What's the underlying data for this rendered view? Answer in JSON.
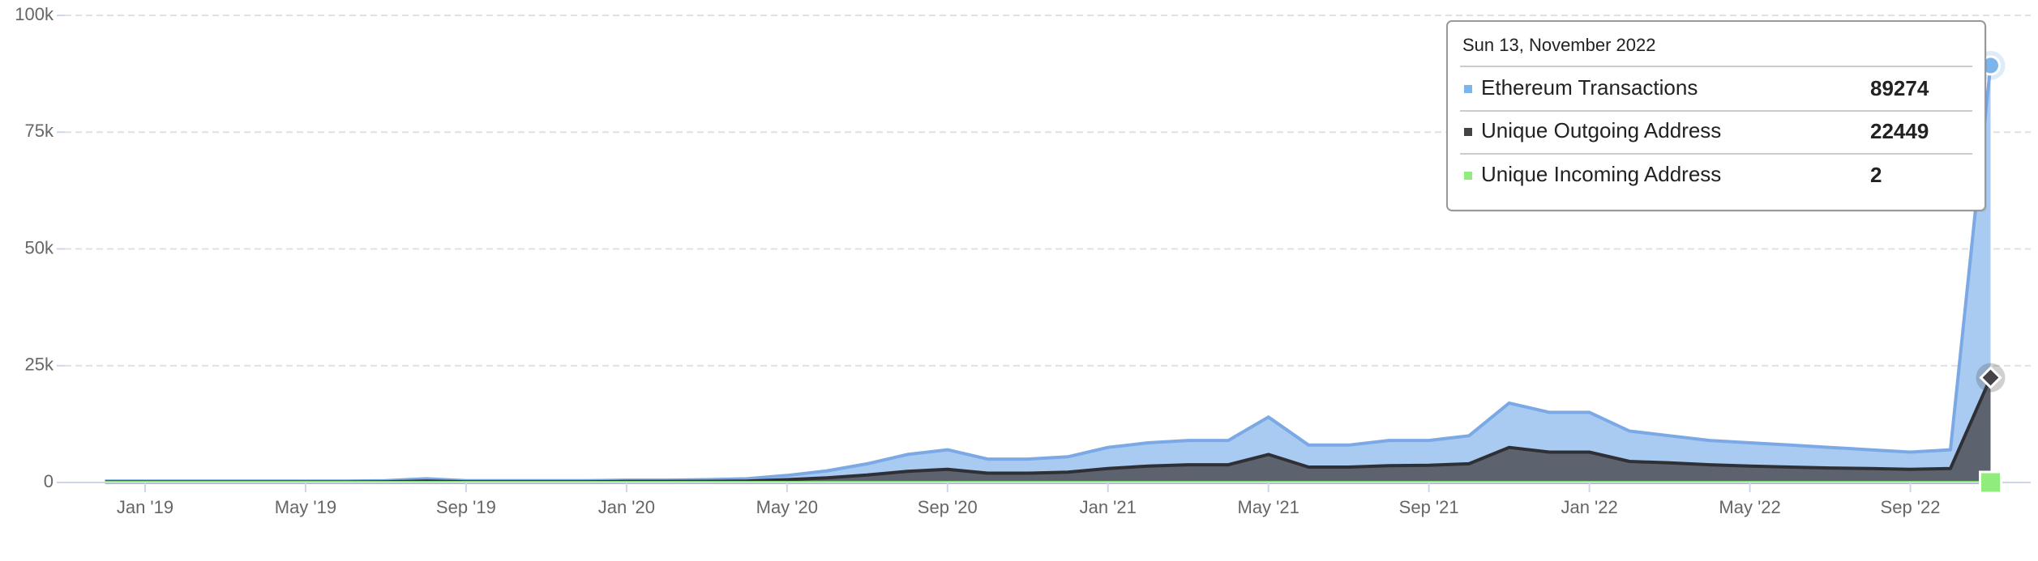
{
  "chart_data": {
    "type": "area",
    "x": [
      "2018-12",
      "2019-01",
      "2019-02",
      "2019-03",
      "2019-04",
      "2019-05",
      "2019-06",
      "2019-07",
      "2019-08",
      "2019-09",
      "2019-10",
      "2019-11",
      "2019-12",
      "2020-01",
      "2020-02",
      "2020-03",
      "2020-04",
      "2020-05",
      "2020-06",
      "2020-07",
      "2020-08",
      "2020-09",
      "2020-10",
      "2020-11",
      "2020-12",
      "2021-01",
      "2021-02",
      "2021-03",
      "2021-04",
      "2021-05",
      "2021-06",
      "2021-07",
      "2021-08",
      "2021-09",
      "2021-10",
      "2021-11",
      "2021-12",
      "2022-01",
      "2022-02",
      "2022-03",
      "2022-04",
      "2022-05",
      "2022-06",
      "2022-07",
      "2022-08",
      "2022-09",
      "2022-10",
      "2022-11"
    ],
    "xlim": [
      "2018-11",
      "2022-12"
    ],
    "xticks": [
      {
        "value": "2019-01",
        "label": "Jan '19"
      },
      {
        "value": "2019-05",
        "label": "May '19"
      },
      {
        "value": "2019-09",
        "label": "Sep '19"
      },
      {
        "value": "2020-01",
        "label": "Jan '20"
      },
      {
        "value": "2020-05",
        "label": "May '20"
      },
      {
        "value": "2020-09",
        "label": "Sep '20"
      },
      {
        "value": "2021-01",
        "label": "Jan '21"
      },
      {
        "value": "2021-05",
        "label": "May '21"
      },
      {
        "value": "2021-09",
        "label": "Sep '21"
      },
      {
        "value": "2022-01",
        "label": "Jan '22"
      },
      {
        "value": "2022-05",
        "label": "May '22"
      },
      {
        "value": "2022-09",
        "label": "Sep '22"
      }
    ],
    "ylim": [
      0,
      100000
    ],
    "yticks": [
      0,
      {
        "value": 25000,
        "label": "25k"
      },
      {
        "value": 50000,
        "label": "50k"
      },
      {
        "value": 75000,
        "label": "75k"
      },
      {
        "value": 100000,
        "label": "100k"
      }
    ],
    "grid": true,
    "series": [
      {
        "name": "Ethereum Transactions",
        "color": "#7cb5ec",
        "values": [
          300,
          300,
          300,
          300,
          300,
          300,
          300,
          400,
          800,
          400,
          400,
          400,
          400,
          500,
          500,
          600,
          800,
          1500,
          2500,
          4000,
          6000,
          7000,
          5000,
          5000,
          5500,
          7500,
          8500,
          9000,
          9000,
          14000,
          8000,
          8000,
          9000,
          9000,
          10000,
          17000,
          15000,
          15000,
          11000,
          10000,
          9000,
          8500,
          8000,
          7500,
          7000,
          6500,
          7000,
          89274
        ]
      },
      {
        "name": "Unique Outgoing Address",
        "color": "#434348",
        "values": [
          100,
          100,
          100,
          100,
          100,
          100,
          100,
          150,
          300,
          150,
          150,
          150,
          150,
          200,
          200,
          250,
          300,
          600,
          1000,
          1600,
          2400,
          2800,
          2000,
          2000,
          2200,
          3000,
          3500,
          3800,
          3800,
          6000,
          3300,
          3300,
          3600,
          3700,
          4000,
          7500,
          6500,
          6500,
          4500,
          4200,
          3800,
          3500,
          3300,
          3100,
          3000,
          2800,
          3000,
          22449
        ]
      },
      {
        "name": "Unique Incoming Address",
        "color": "#90ed7d",
        "values": [
          0,
          0,
          0,
          0,
          0,
          0,
          0,
          0,
          0,
          0,
          0,
          0,
          0,
          0,
          0,
          0,
          0,
          0,
          0,
          0,
          0,
          0,
          0,
          0,
          0,
          0,
          0,
          0,
          0,
          0,
          0,
          0,
          0,
          0,
          0,
          0,
          0,
          0,
          0,
          0,
          0,
          0,
          0,
          0,
          0,
          0,
          0,
          2
        ]
      }
    ],
    "tooltip_title": "Sun 13, November 2022"
  }
}
